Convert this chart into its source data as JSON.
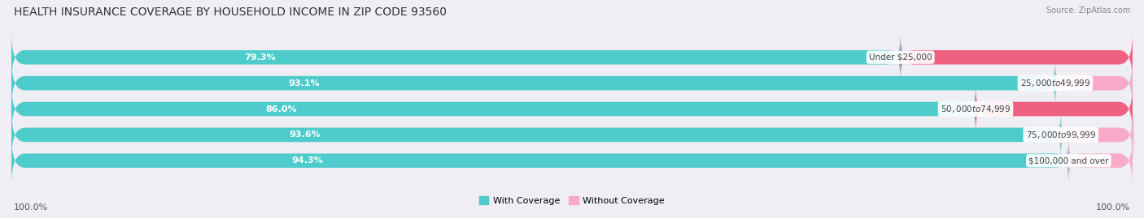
{
  "title": "HEALTH INSURANCE COVERAGE BY HOUSEHOLD INCOME IN ZIP CODE 93560",
  "source": "Source: ZipAtlas.com",
  "categories": [
    "Under $25,000",
    "$25,000 to $49,999",
    "$50,000 to $74,999",
    "$75,000 to $99,999",
    "$100,000 and over"
  ],
  "with_coverage": [
    79.3,
    93.1,
    86.0,
    93.6,
    94.3
  ],
  "without_coverage": [
    20.7,
    6.9,
    14.0,
    6.5,
    5.7
  ],
  "color_with": "#4ecbcb",
  "color_without_strong": "#f06080",
  "color_without_light": "#f8aac8",
  "bg_color": "#eeeef4",
  "bar_bg_color": "#e0e0e8",
  "legend_with": "With Coverage",
  "legend_without": "Without Coverage",
  "left_label": "100.0%",
  "right_label": "100.0%",
  "title_fontsize": 10,
  "label_fontsize": 8,
  "category_fontsize": 8,
  "bar_height": 0.55,
  "figsize": [
    14.06,
    2.69
  ],
  "dpi": 100
}
